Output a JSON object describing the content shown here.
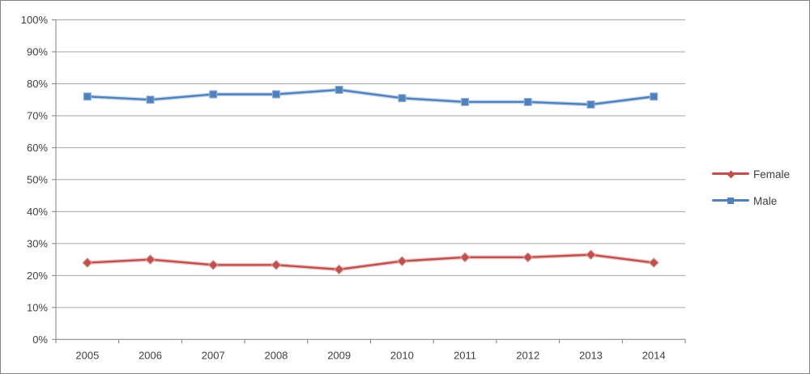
{
  "chart_data": {
    "type": "line",
    "title": "",
    "xlabel": "",
    "ylabel": "",
    "categories": [
      "2005",
      "2006",
      "2007",
      "2008",
      "2009",
      "2010",
      "2011",
      "2012",
      "2013",
      "2014"
    ],
    "series": [
      {
        "name": "Female",
        "color": "#C0504D",
        "halo_color": "#D99694",
        "marker": "diamond",
        "values": [
          24.0,
          25.0,
          23.3,
          23.3,
          21.9,
          24.5,
          25.7,
          25.7,
          26.5,
          24.0
        ]
      },
      {
        "name": "Male",
        "color": "#4F81BD",
        "halo_color": "#95B3D7",
        "marker": "square",
        "values": [
          76.0,
          75.0,
          76.7,
          76.7,
          78.1,
          75.5,
          74.3,
          74.3,
          73.5,
          76.0
        ]
      }
    ],
    "ylim": [
      0,
      100
    ],
    "y_tick_step": 10,
    "y_ticks": [
      {
        "value": 100,
        "label": "100%"
      },
      {
        "value": 90,
        "label": "90%"
      },
      {
        "value": 80,
        "label": "80%"
      },
      {
        "value": 70,
        "label": "70%"
      },
      {
        "value": 60,
        "label": "60%"
      },
      {
        "value": 50,
        "label": "50%"
      },
      {
        "value": 40,
        "label": "40%"
      },
      {
        "value": 30,
        "label": "30%"
      },
      {
        "value": 20,
        "label": "20%"
      },
      {
        "value": 10,
        "label": "10%"
      },
      {
        "value": 0,
        "label": "0%"
      }
    ],
    "grid": true,
    "legend_position": "right",
    "colors": {
      "gridline": "#A6A6A6",
      "axis": "#808080",
      "tick_text": "#404040",
      "background": "#FFFFFF",
      "frame_border": "#848484"
    }
  }
}
